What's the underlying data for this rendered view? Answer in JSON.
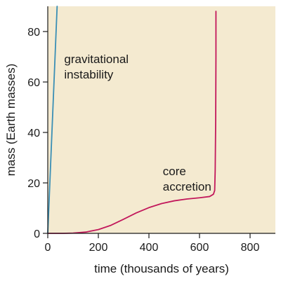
{
  "chart_data": {
    "type": "line",
    "title": "",
    "xlabel": "time (thousands of years)",
    "ylabel": "mass (Earth masses)",
    "xlim": [
      0,
      900
    ],
    "ylim": [
      0,
      90
    ],
    "x_ticks": [
      0,
      200,
      400,
      600,
      800
    ],
    "x_tick_labels": [
      "0",
      "200",
      "400",
      "600",
      "800"
    ],
    "y_ticks": [
      0,
      20,
      40,
      60,
      80
    ],
    "y_tick_labels": [
      "0",
      "20",
      "40",
      "60",
      "80"
    ],
    "grid": false,
    "legend": "none",
    "background_color": "#f4ead0",
    "series": [
      {
        "color": "#3a8fb5",
        "x": [
          0,
          37
        ],
        "y": [
          0,
          90
        ]
      },
      {
        "color": "#c2185b",
        "x": [
          0,
          60,
          100,
          150,
          200,
          250,
          300,
          350,
          400,
          450,
          500,
          550,
          600,
          640,
          655,
          660,
          662,
          664,
          665,
          665
        ],
        "y": [
          0,
          0,
          0.1,
          0.5,
          1.5,
          3.2,
          5.6,
          8.1,
          10.2,
          11.8,
          12.9,
          13.6,
          14.1,
          14.6,
          15.5,
          17,
          25,
          45,
          70,
          88
        ]
      }
    ],
    "annotations": [
      {
        "text_lines": [
          "gravitational",
          "instability"
        ],
        "at_x": 65,
        "at_y": 67.5
      },
      {
        "text_lines": [
          "core",
          "accretion"
        ],
        "at_x": 455,
        "at_y": 23
      }
    ]
  }
}
